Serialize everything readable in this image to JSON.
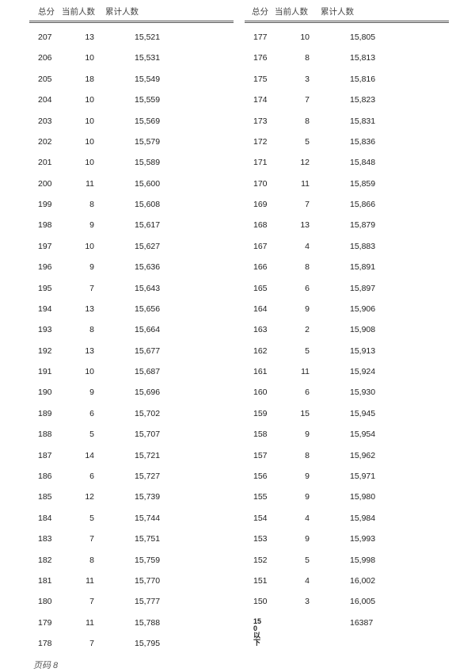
{
  "headers": [
    "总分",
    "当前人数",
    "累计人数"
  ],
  "left_rows": [
    [
      "207",
      "13",
      "15,521"
    ],
    [
      "206",
      "10",
      "15,531"
    ],
    [
      "205",
      "18",
      "15,549"
    ],
    [
      "204",
      "10",
      "15,559"
    ],
    [
      "203",
      "10",
      "15,569"
    ],
    [
      "202",
      "10",
      "15,579"
    ],
    [
      "201",
      "10",
      "15,589"
    ],
    [
      "200",
      "11",
      "15,600"
    ],
    [
      "199",
      "8",
      "15,608"
    ],
    [
      "198",
      "9",
      "15,617"
    ],
    [
      "197",
      "10",
      "15,627"
    ],
    [
      "196",
      "9",
      "15,636"
    ],
    [
      "195",
      "7",
      "15,643"
    ],
    [
      "194",
      "13",
      "15,656"
    ],
    [
      "193",
      "8",
      "15,664"
    ],
    [
      "192",
      "13",
      "15,677"
    ],
    [
      "191",
      "10",
      "15,687"
    ],
    [
      "190",
      "9",
      "15,696"
    ],
    [
      "189",
      "6",
      "15,702"
    ],
    [
      "188",
      "5",
      "15,707"
    ],
    [
      "187",
      "14",
      "15,721"
    ],
    [
      "186",
      "6",
      "15,727"
    ],
    [
      "185",
      "12",
      "15,739"
    ],
    [
      "184",
      "5",
      "15,744"
    ],
    [
      "183",
      "7",
      "15,751"
    ],
    [
      "182",
      "8",
      "15,759"
    ],
    [
      "181",
      "11",
      "15,770"
    ],
    [
      "180",
      "7",
      "15,777"
    ],
    [
      "179",
      "11",
      "15,788"
    ],
    [
      "178",
      "7",
      "15,795"
    ]
  ],
  "right_rows": [
    [
      "177",
      "10",
      "15,805"
    ],
    [
      "176",
      "8",
      "15,813"
    ],
    [
      "175",
      "3",
      "15,816"
    ],
    [
      "174",
      "7",
      "15,823"
    ],
    [
      "173",
      "8",
      "15,831"
    ],
    [
      "172",
      "5",
      "15,836"
    ],
    [
      "171",
      "12",
      "15,848"
    ],
    [
      "170",
      "11",
      "15,859"
    ],
    [
      "169",
      "7",
      "15,866"
    ],
    [
      "168",
      "13",
      "15,879"
    ],
    [
      "167",
      "4",
      "15,883"
    ],
    [
      "166",
      "8",
      "15,891"
    ],
    [
      "165",
      "6",
      "15,897"
    ],
    [
      "164",
      "9",
      "15,906"
    ],
    [
      "163",
      "2",
      "15,908"
    ],
    [
      "162",
      "5",
      "15,913"
    ],
    [
      "161",
      "11",
      "15,924"
    ],
    [
      "160",
      "6",
      "15,930"
    ],
    [
      "159",
      "15",
      "15,945"
    ],
    [
      "158",
      "9",
      "15,954"
    ],
    [
      "157",
      "8",
      "15,962"
    ],
    [
      "156",
      "9",
      "15,971"
    ],
    [
      "155",
      "9",
      "15,980"
    ],
    [
      "154",
      "4",
      "15,984"
    ],
    [
      "153",
      "9",
      "15,993"
    ],
    [
      "152",
      "5",
      "15,998"
    ],
    [
      "151",
      "4",
      "16,002"
    ],
    [
      "150",
      "3",
      "16,005"
    ],
    [
      "150以下",
      "",
      "16387"
    ]
  ],
  "footer": "页码 8"
}
